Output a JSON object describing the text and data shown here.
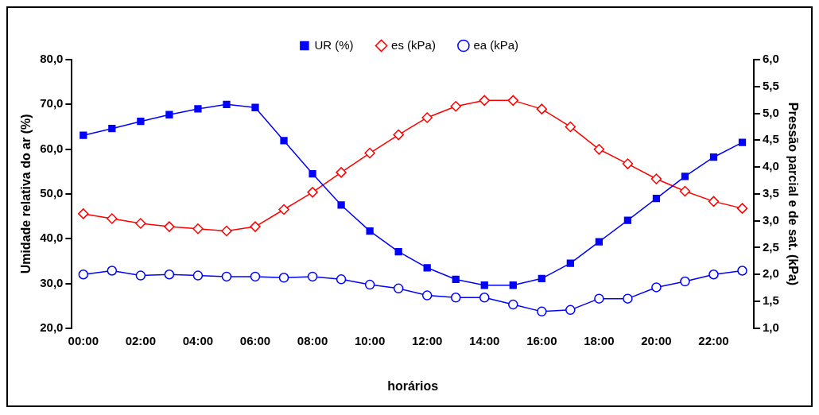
{
  "chart_data": {
    "type": "line",
    "xlabel": "horários",
    "ylabel": "Umidade relativa do ar (%)",
    "y2label": "Pressão parcial e de sat. (kPa)",
    "x": [
      0,
      1,
      2,
      3,
      4,
      5,
      6,
      7,
      8,
      9,
      10,
      11,
      12,
      13,
      14,
      15,
      16,
      17,
      18,
      19,
      20,
      21,
      22,
      23
    ],
    "xlim": [
      -0.4,
      23.4
    ],
    "xticks": [
      {
        "value": 0,
        "label": "00:00"
      },
      {
        "value": 2,
        "label": "02:00"
      },
      {
        "value": 4,
        "label": "04:00"
      },
      {
        "value": 6,
        "label": "06:00"
      },
      {
        "value": 8,
        "label": "08:00"
      },
      {
        "value": 10,
        "label": "10:00"
      },
      {
        "value": 12,
        "label": "12:00"
      },
      {
        "value": 14,
        "label": "14:00"
      },
      {
        "value": 16,
        "label": "16:00"
      },
      {
        "value": 18,
        "label": "18:00"
      },
      {
        "value": 20,
        "label": "20:00"
      },
      {
        "value": 22,
        "label": "22:00"
      }
    ],
    "ylim": [
      20,
      80
    ],
    "yticks": [
      {
        "value": 20,
        "label": "20,0"
      },
      {
        "value": 30,
        "label": "30,0"
      },
      {
        "value": 40,
        "label": "40,0"
      },
      {
        "value": 50,
        "label": "50,0"
      },
      {
        "value": 60,
        "label": "60,0"
      },
      {
        "value": 70,
        "label": "70,0"
      },
      {
        "value": 80,
        "label": "80,0"
      }
    ],
    "y2lim": [
      1,
      6
    ],
    "y2ticks": [
      {
        "value": 1,
        "label": "1,0"
      },
      {
        "value": 1.5,
        "label": "1,5"
      },
      {
        "value": 2,
        "label": "2,0"
      },
      {
        "value": 2.5,
        "label": "2,5"
      },
      {
        "value": 3,
        "label": "3,0"
      },
      {
        "value": 3.5,
        "label": "3,5"
      },
      {
        "value": 4,
        "label": "4,0"
      },
      {
        "value": 4.5,
        "label": "4,5"
      },
      {
        "value": 5,
        "label": "5,0"
      },
      {
        "value": 5.5,
        "label": "5,5"
      },
      {
        "value": 6,
        "label": "6,0"
      }
    ],
    "grid": false,
    "legend": "top",
    "series": [
      {
        "name": "UR (%)",
        "color": "#0000ff",
        "marker": "square",
        "values": [
          63.1,
          64.6,
          66.2,
          67.7,
          69.0,
          70.0,
          69.3,
          61.9,
          54.5,
          47.5,
          41.7,
          37.1,
          33.5,
          30.9,
          29.6,
          29.6,
          31.1,
          34.5,
          39.3,
          44.1,
          49.0,
          53.9,
          58.2,
          61.5
        ]
      },
      {
        "name": "es (kPa)",
        "color": "#ff0000",
        "marker": "diamond",
        "axis": "y2",
        "values": [
          3.13,
          3.04,
          2.95,
          2.89,
          2.85,
          2.81,
          2.89,
          3.21,
          3.53,
          3.9,
          4.26,
          4.6,
          4.92,
          5.13,
          5.24,
          5.24,
          5.08,
          4.75,
          4.33,
          4.06,
          3.78,
          3.55,
          3.36,
          3.23
        ]
      },
      {
        "name": "ea (kPa)",
        "color": "#0000ff",
        "marker": "circle",
        "axis": "y2",
        "values": [
          2.0,
          2.07,
          1.98,
          2.0,
          1.98,
          1.96,
          1.96,
          1.94,
          1.96,
          1.91,
          1.81,
          1.74,
          1.61,
          1.57,
          1.57,
          1.44,
          1.31,
          1.34,
          1.55,
          1.55,
          1.76,
          1.87,
          2.0,
          2.07
        ]
      }
    ]
  }
}
